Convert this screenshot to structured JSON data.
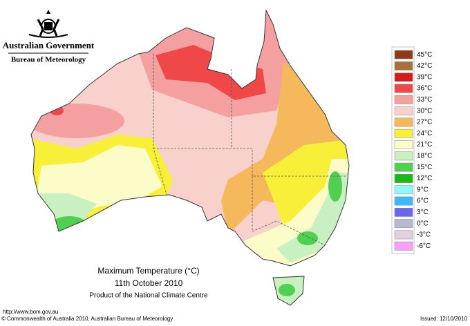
{
  "header": {
    "government": "Australian Government",
    "bureau": "Bureau of Meteorology"
  },
  "legend": {
    "items": [
      {
        "label": "45°C",
        "color": "#8e3a14"
      },
      {
        "label": "42°C",
        "color": "#a8703c"
      },
      {
        "label": "39°C",
        "color": "#d41c1c"
      },
      {
        "label": "36°C",
        "color": "#f04848"
      },
      {
        "label": "33°C",
        "color": "#f4a0a0"
      },
      {
        "label": "30°C",
        "color": "#f8d0cc"
      },
      {
        "label": "27°C",
        "color": "#f5b85a"
      },
      {
        "label": "24°C",
        "color": "#f8f038"
      },
      {
        "label": "21°C",
        "color": "#fcfcc8"
      },
      {
        "label": "18°C",
        "color": "#c8f0c0"
      },
      {
        "label": "15°C",
        "color": "#50d050"
      },
      {
        "label": "12°C",
        "color": "#18b818"
      },
      {
        "label": "9°C",
        "color": "#90f8f8"
      },
      {
        "label": "6°C",
        "color": "#40b8f8"
      },
      {
        "label": "3°C",
        "color": "#6868f0"
      },
      {
        "label": "0°C",
        "color": "#b8b8d0"
      },
      {
        "label": "-3°C",
        "color": "#e0d0e0"
      },
      {
        "label": "-6°C",
        "color": "#f8a0f8"
      }
    ]
  },
  "caption": {
    "title": "Maximum Temperature (°C)",
    "date": "11th October 2010",
    "product": "Product of the National Climate Centre"
  },
  "footer": {
    "url": "http://www.bom.gov.au",
    "copyright": "© Commonwealth of Australia 2010, Australian Bureau of Meteorology",
    "issued": "Issued: 12/10/2010"
  }
}
